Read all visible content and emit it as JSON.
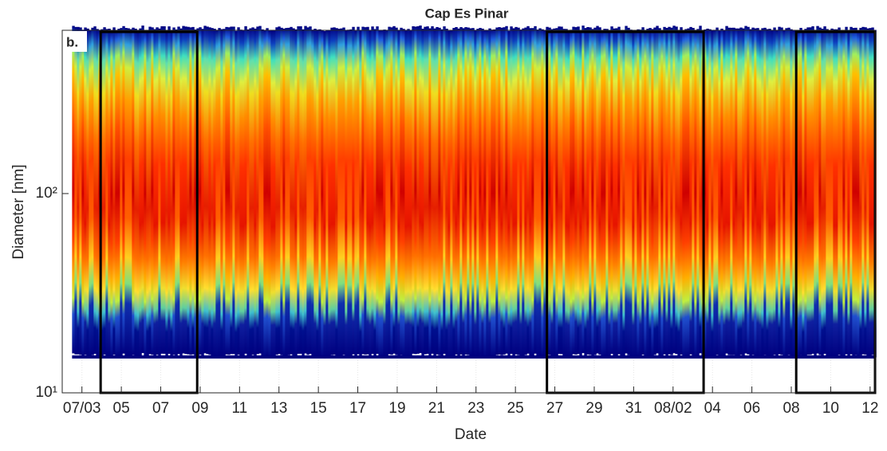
{
  "chart_data": {
    "type": "heatmap",
    "title": "Cap Es Pinar",
    "panel_label": "b.",
    "x_label": "Date",
    "y_label": "Diameter [nm]",
    "xlim": [
      -1,
      40.25
    ],
    "xticks": [
      {
        "value": 0,
        "label": "07/03"
      },
      {
        "value": 2,
        "label": "05"
      },
      {
        "value": 4,
        "label": "07"
      },
      {
        "value": 6,
        "label": "09"
      },
      {
        "value": 8,
        "label": "11"
      },
      {
        "value": 10,
        "label": "13"
      },
      {
        "value": 12,
        "label": "15"
      },
      {
        "value": 14,
        "label": "17"
      },
      {
        "value": 16,
        "label": "19"
      },
      {
        "value": 18,
        "label": "21"
      },
      {
        "value": 20,
        "label": "23"
      },
      {
        "value": 22,
        "label": "25"
      },
      {
        "value": 24,
        "label": "27"
      },
      {
        "value": 26,
        "label": "29"
      },
      {
        "value": 28,
        "label": "31"
      },
      {
        "value": 30,
        "label": "08/02"
      },
      {
        "value": 32,
        "label": "04"
      },
      {
        "value": 34,
        "label": "06"
      },
      {
        "value": 36,
        "label": "08"
      },
      {
        "value": 38,
        "label": "10"
      },
      {
        "value": 40,
        "label": "12"
      }
    ],
    "ylim": [
      10,
      660
    ],
    "log_y": true,
    "yticks": [
      {
        "value": 10,
        "label": "10¹"
      },
      {
        "value": 100,
        "label": "10²"
      }
    ],
    "data_xlim": [
      -0.5,
      40.25
    ],
    "data_ylim": [
      15,
      660
    ],
    "highlight_spans": [
      [
        0.95,
        5.85
      ],
      [
        23.6,
        31.55
      ],
      [
        36.25,
        40.25
      ]
    ],
    "grid": true
  }
}
